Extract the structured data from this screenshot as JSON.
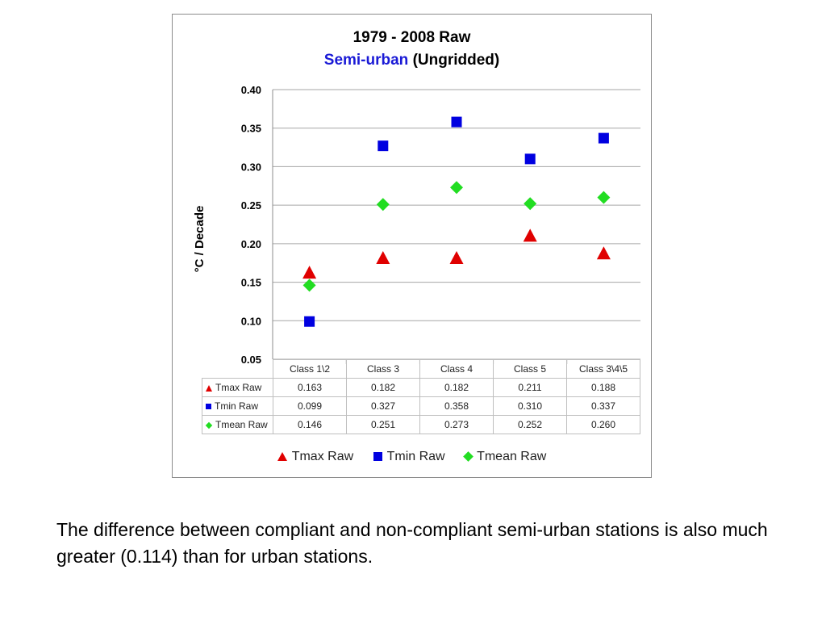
{
  "chart_data": {
    "type": "scatter",
    "title_line1": "1979 - 2008 Raw",
    "title_highlight": "Semi-urban",
    "title_rest": "(Ungridded)",
    "xlabel": "",
    "ylabel": "°C / Decade",
    "ylim": [
      0.05,
      0.4
    ],
    "yticks": [
      "0.40",
      "0.35",
      "0.30",
      "0.25",
      "0.20",
      "0.15",
      "0.10",
      "0.05"
    ],
    "ytick_values": [
      0.4,
      0.35,
      0.3,
      0.25,
      0.2,
      0.15,
      0.1,
      0.05
    ],
    "grid": true,
    "legend_position": "bottom",
    "categories": [
      "Class 1\\2",
      "Class 3",
      "Class 4",
      "Class 5",
      "Class 3\\4\\5"
    ],
    "series": [
      {
        "name": "Tmax Raw",
        "marker": "triangle",
        "color": "#e00000",
        "values": [
          0.163,
          0.182,
          0.182,
          0.211,
          0.188
        ],
        "labels": [
          "0.163",
          "0.182",
          "0.182",
          "0.211",
          "0.188"
        ]
      },
      {
        "name": "Tmin Raw",
        "marker": "square",
        "color": "#0000e0",
        "values": [
          0.099,
          0.327,
          0.358,
          0.31,
          0.337
        ],
        "labels": [
          "0.099",
          "0.327",
          "0.358",
          "0.310",
          "0.337"
        ]
      },
      {
        "name": "Tmean Raw",
        "marker": "diamond",
        "color": "#22dd22",
        "values": [
          0.146,
          0.251,
          0.273,
          0.252,
          0.26
        ],
        "labels": [
          "0.146",
          "0.251",
          "0.273",
          "0.252",
          "0.260"
        ]
      }
    ]
  },
  "caption": "The difference between compliant and non-compliant semi-urban stations is also much greater (0.114) than for urban stations."
}
